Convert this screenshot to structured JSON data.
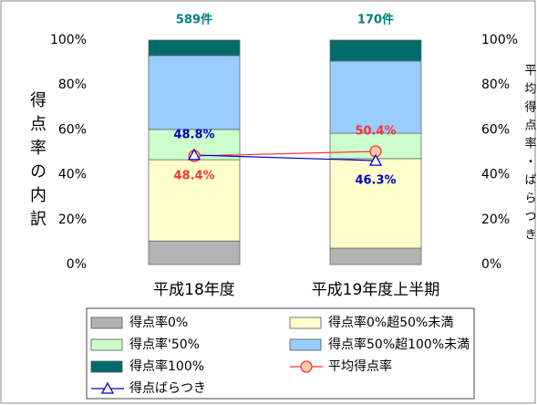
{
  "chart_data": {
    "type": "bar",
    "stacked": true,
    "categories": [
      "平成18年度",
      "平成19年度上半期"
    ],
    "bar_annotations": [
      "589件",
      "170件"
    ],
    "y_label": "得点率の内訳",
    "y2_label": "平均得点率・ばらつき",
    "ylim": [
      0,
      100
    ],
    "yticks": [
      {
        "value": 0,
        "label": "0%"
      },
      {
        "value": 20,
        "label": "20%"
      },
      {
        "value": 40,
        "label": "40%"
      },
      {
        "value": 60,
        "label": "60%"
      },
      {
        "value": 80,
        "label": "80%"
      },
      {
        "value": 100,
        "label": "100%"
      }
    ],
    "y2lim": [
      0,
      100
    ],
    "y2ticks": [
      {
        "value": 0,
        "label": "0%"
      },
      {
        "value": 20,
        "label": "20%"
      },
      {
        "value": 40,
        "label": "40%"
      },
      {
        "value": 60,
        "label": "60%"
      },
      {
        "value": 80,
        "label": "80%"
      },
      {
        "value": 100,
        "label": "100%"
      }
    ],
    "series": [
      {
        "name": "得点率0%",
        "color": "#b3b3b3",
        "values": [
          10.5,
          7.3
        ]
      },
      {
        "name": "得点率0%超50%未満",
        "color": "#ffffcc",
        "values": [
          36.2,
          39.9
        ]
      },
      {
        "name": "得点率'50%",
        "color": "#ccffcc",
        "values": [
          13.5,
          11.3
        ]
      },
      {
        "name": "得点率50%超100%未満",
        "color": "#99ccff",
        "values": [
          32.9,
          32.2
        ]
      },
      {
        "name": "得点率100%",
        "color": "#006b6b",
        "values": [
          6.9,
          9.3
        ]
      },
      {
        "name": "平均得点率",
        "color": "#ff3333",
        "type": "line",
        "marker": "circle",
        "axis": "y2",
        "values": [
          48.4,
          50.4
        ],
        "value_labels": [
          "48.4%",
          "50.4%"
        ]
      },
      {
        "name": "得点ばらつき",
        "color": "#0000cc",
        "type": "line",
        "marker": "triangle",
        "axis": "y2",
        "values": [
          48.8,
          46.3
        ],
        "value_labels": [
          "48.8%",
          "46.3%"
        ]
      }
    ],
    "legend": "bottom"
  }
}
